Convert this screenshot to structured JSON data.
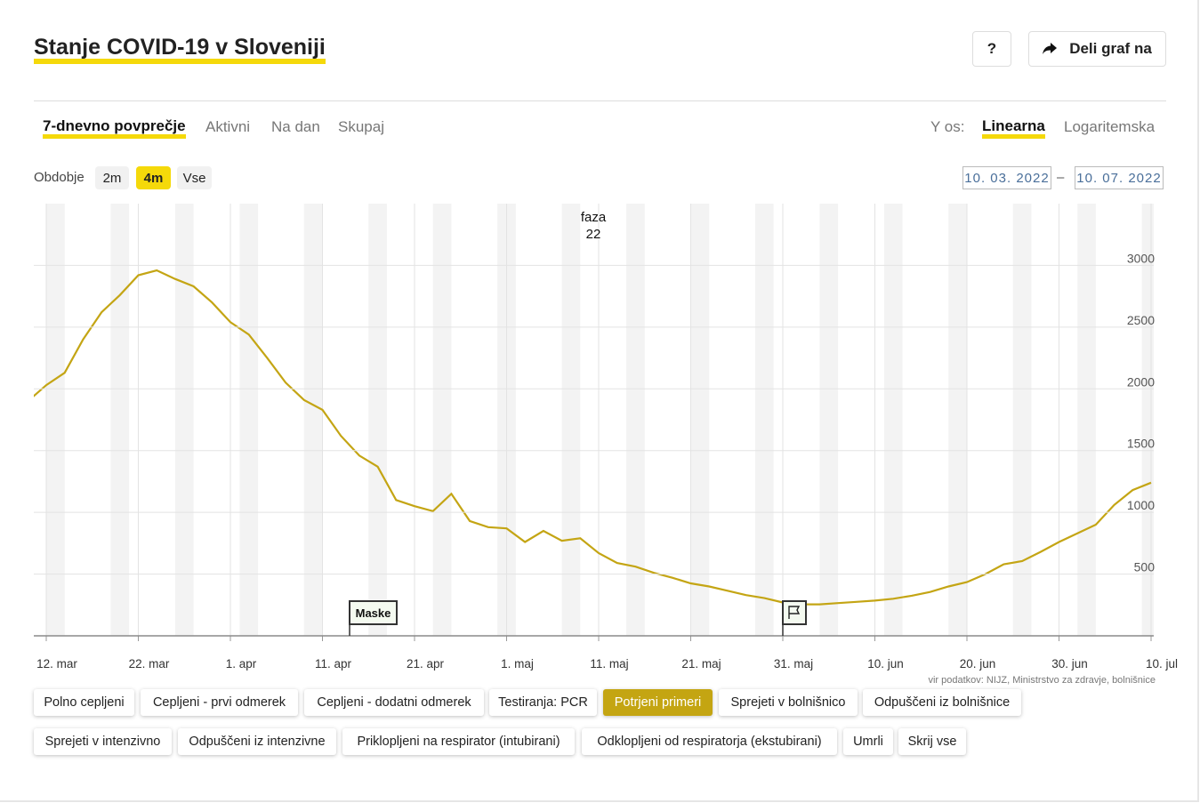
{
  "header": {
    "title": "Stanje COVID-19 v Sloveniji",
    "help": "?",
    "share": "Deli graf na"
  },
  "tabs": [
    "7-dnevno povprečje",
    "Aktivni",
    "Na dan",
    "Skupaj"
  ],
  "y_axis_mode": {
    "label": "Y os:",
    "options": [
      "Linearna",
      "Logaritemska"
    ]
  },
  "period": {
    "label": "Obdobje",
    "options": [
      "2m",
      "4m",
      "Vse"
    ],
    "from": "10. 03. 2022",
    "separator": "–",
    "to": "10. 07. 2022"
  },
  "chart_data": {
    "type": "line",
    "color": "#c4a514",
    "x": [
      "10. mar",
      "12. mar",
      "14. mar",
      "16. mar",
      "18. mar",
      "20. mar",
      "22. mar",
      "24. mar",
      "26. mar",
      "28. mar",
      "30. mar",
      "1. apr",
      "3. apr",
      "5. apr",
      "7. apr",
      "9. apr",
      "11. apr",
      "13. apr",
      "15. apr",
      "17. apr",
      "19. apr",
      "21. apr",
      "23. apr",
      "25. apr",
      "27. apr",
      "29. apr",
      "1. maj",
      "3. maj",
      "5. maj",
      "7. maj",
      "9. maj",
      "11. maj",
      "13. maj",
      "15. maj",
      "17. maj",
      "19. maj",
      "21. maj",
      "23. maj",
      "25. maj",
      "27. maj",
      "29. maj",
      "31. maj",
      "2. jun",
      "4. jun",
      "6. jun",
      "8. jun",
      "10. jun",
      "12. jun",
      "14. jun",
      "16. jun",
      "18. jun",
      "20. jun",
      "22. jun",
      "24. jun",
      "26. jun",
      "28. jun",
      "30. jun",
      "2. jul",
      "4. jul",
      "6. jul",
      "8. jul",
      "10. jul"
    ],
    "values": [
      1900,
      2030,
      2130,
      2400,
      2620,
      2760,
      2920,
      2960,
      2890,
      2830,
      2700,
      2540,
      2440,
      2250,
      2050,
      1910,
      1830,
      1620,
      1460,
      1370,
      1100,
      1050,
      1010,
      1150,
      930,
      880,
      870,
      760,
      850,
      770,
      790,
      670,
      590,
      560,
      510,
      470,
      425,
      400,
      365,
      330,
      305,
      270,
      255,
      255,
      265,
      275,
      285,
      300,
      325,
      355,
      400,
      435,
      500,
      580,
      605,
      680,
      760,
      830,
      900,
      1060,
      1180,
      1240
    ],
    "xticks": [
      "12. mar",
      "22. mar",
      "1. apr",
      "11. apr",
      "21. apr",
      "1. maj",
      "11. maj",
      "21. maj",
      "31. maj",
      "10. jun",
      "20. jun",
      "30. jun",
      "10. jul"
    ],
    "ylim": [
      0,
      3500
    ],
    "yticks": [
      500,
      1000,
      1500,
      2000,
      2500,
      3000
    ],
    "grid": true,
    "annotations": [
      "faza",
      "22",
      "Maske"
    ],
    "source": "vir podatkov: NIJZ, Ministrstvo za zdravje, bolnišnice"
  },
  "buttons": [
    [
      "Polno cepljeni",
      "Cepljeni - prvi odmerek",
      "Cepljeni - dodatni odmerek",
      "Testiranja: PCR",
      "Potrjeni primeri",
      "Sprejeti v bolnišnico",
      "Odpuščeni iz bolnišnice"
    ],
    [
      "Sprejeti v intenzivno",
      "Odpuščeni iz intenzivne",
      "Priklopljeni na respirator (intubirani)",
      "Odklopljeni od respiratorja (ekstubirani)",
      "Umrli",
      "Skrij vse"
    ]
  ]
}
